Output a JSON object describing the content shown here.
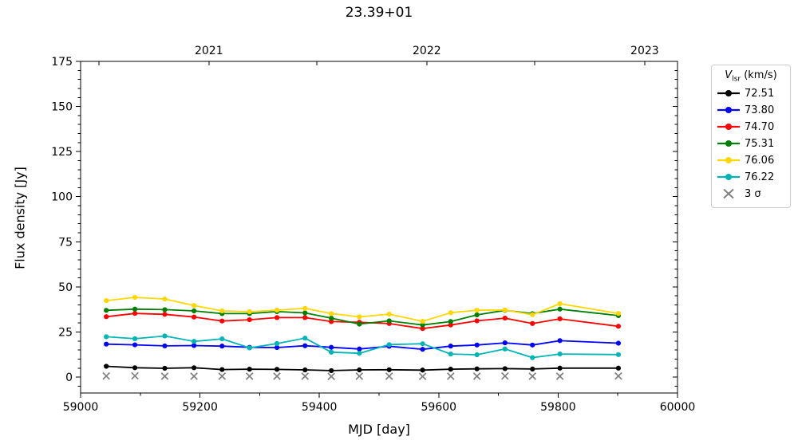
{
  "title": "23.39+01",
  "axes": {
    "xlabel": "MJD [day]",
    "ylabel": "Flux density [Jy]",
    "xlim": [
      59000,
      60000
    ],
    "ylim": [
      -8.8,
      175
    ],
    "x_major_ticks": [
      59000,
      59200,
      59400,
      59600,
      59800,
      60000
    ],
    "x_minor_step": 100,
    "y_major_ticks": [
      0,
      25,
      50,
      75,
      100,
      125,
      150,
      175
    ],
    "y_minor_step": 5,
    "top_axis_ticks": [
      {
        "mjd": 59031,
        "label": ""
      },
      {
        "mjd": 59215,
        "label": "2021"
      },
      {
        "mjd": 59396,
        "label": ""
      },
      {
        "mjd": 59580,
        "label": "2022"
      },
      {
        "mjd": 59761,
        "label": ""
      },
      {
        "mjd": 59945,
        "label": "2023"
      }
    ]
  },
  "legend": {
    "title_var": "V",
    "title_sub": "lsr",
    "title_unit": " (km/s)",
    "entries": [
      {
        "label": "72.51",
        "color": "#000000",
        "marker": "line-dot"
      },
      {
        "label": "73.80",
        "color": "#0000ff",
        "marker": "line-dot"
      },
      {
        "label": "74.70",
        "color": "#ff0000",
        "marker": "line-dot"
      },
      {
        "label": "75.31",
        "color": "#008000",
        "marker": "line-dot"
      },
      {
        "label": "76.06",
        "color": "#ffd700",
        "marker": "line-dot"
      },
      {
        "label": "76.22",
        "color": "#00b5b5",
        "marker": "line-dot"
      },
      {
        "label": "3 σ",
        "color": "#808080",
        "marker": "x"
      }
    ]
  },
  "chart_data": {
    "type": "line",
    "title": "23.39+01",
    "xlabel": "MJD [day]",
    "ylabel": "Flux density [Jy]",
    "xlim": [
      59000,
      60000
    ],
    "ylim": [
      -8.8,
      175
    ],
    "legend_title": "Vlsr (km/s)",
    "legend_position": "outside right top",
    "grid": false,
    "x_mjd": [
      59043,
      59091,
      59141,
      59190,
      59237,
      59283,
      59329,
      59376,
      59420,
      59467,
      59517,
      59573,
      59620,
      59664,
      59711,
      59757,
      59803,
      59901
    ],
    "series": [
      {
        "name": "72.51",
        "color": "#000000",
        "values": [
          6.0,
          5.2,
          4.9,
          5.2,
          4.2,
          4.4,
          4.3,
          4.0,
          3.6,
          4.0,
          4.1,
          3.9,
          4.4,
          4.6,
          4.7,
          4.5,
          5.0,
          5.0
        ]
      },
      {
        "name": "73.80",
        "color": "#0000ff",
        "values": [
          18.3,
          17.9,
          17.3,
          17.5,
          17.2,
          16.5,
          16.4,
          17.4,
          16.5,
          15.6,
          17.1,
          15.4,
          17.2,
          17.8,
          19.0,
          17.8,
          20.2,
          18.8
        ]
      },
      {
        "name": "74.70",
        "color": "#ff0000",
        "values": [
          33.5,
          35.3,
          34.8,
          33.3,
          31.1,
          31.8,
          33.0,
          33.0,
          30.8,
          30.4,
          29.7,
          26.9,
          28.9,
          31.2,
          32.7,
          29.7,
          32.3,
          28.2
        ]
      },
      {
        "name": "75.31",
        "color": "#008000",
        "values": [
          37.0,
          37.7,
          37.4,
          36.7,
          35.2,
          35.2,
          36.3,
          35.6,
          32.7,
          29.4,
          31.2,
          28.9,
          30.8,
          34.5,
          37.0,
          35.2,
          37.7,
          34.1
        ]
      },
      {
        "name": "76.06",
        "color": "#ffd700",
        "values": [
          42.4,
          44.2,
          43.3,
          39.7,
          36.7,
          36.3,
          37.1,
          38.1,
          35.2,
          33.4,
          34.9,
          30.9,
          35.7,
          37.1,
          37.2,
          34.6,
          40.7,
          35.3
        ]
      },
      {
        "name": "76.22",
        "color": "#00b5b5",
        "values": [
          22.4,
          21.3,
          22.8,
          19.8,
          21.2,
          16.2,
          18.6,
          21.6,
          13.8,
          13.2,
          18.0,
          18.5,
          12.8,
          12.4,
          15.6,
          10.8,
          12.8,
          12.5
        ]
      }
    ],
    "scatter_series": [
      {
        "name": "3 σ",
        "color": "#808080",
        "marker": "x",
        "values": [
          0.6,
          0.7,
          0.5,
          0.5,
          0.5,
          0.5,
          0.5,
          0.5,
          0.4,
          0.5,
          0.5,
          0.4,
          0.5,
          0.5,
          0.6,
          0.5,
          0.5,
          0.6
        ]
      }
    ]
  }
}
